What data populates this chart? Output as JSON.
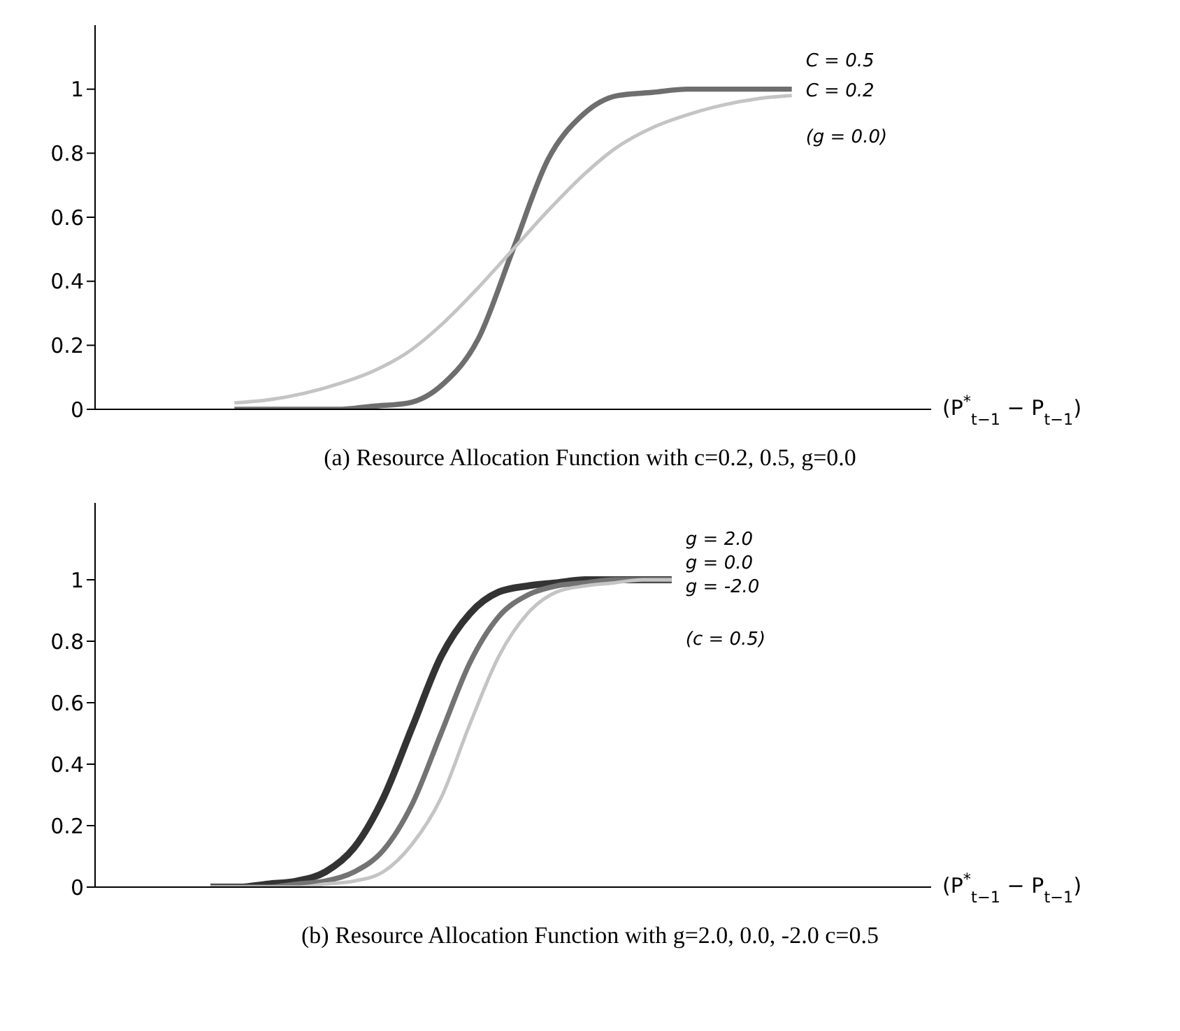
{
  "chart_data": [
    {
      "type": "line",
      "title": "(a) Resource Allocation Function with c=0.2, 0.5, g=0.0",
      "xlabel": "(P$^{*}$$_{t−1}$ − P$_{t−1}$)",
      "categories": [
        null,
        null,
        null,
        null,
        null,
        null,
        null,
        null,
        null,
        null,
        null,
        null,
        null,
        null,
        null,
        null,
        null,
        null,
        null,
        null,
        null,
        null,
        null,
        null,
        null
      ],
      "series": [
        {
          "name": "C = 0.5",
          "color": "#6e6e6e",
          "values": [
            null,
            null,
            null,
            null,
            0,
            0,
            0,
            0,
            0.01,
            0.02,
            0.08,
            0.22,
            0.5,
            0.78,
            0.92,
            0.98,
            0.99,
            1,
            1,
            1,
            1,
            null,
            null,
            null,
            null
          ]
        },
        {
          "name": "C = 0.2",
          "color": "#c4c4c4",
          "values": [
            null,
            null,
            null,
            null,
            0.02,
            0.03,
            0.05,
            0.08,
            0.12,
            0.18,
            0.27,
            0.38,
            0.5,
            0.62,
            0.73,
            0.82,
            0.88,
            0.92,
            0.95,
            0.97,
            0.98,
            null,
            null,
            null,
            null
          ]
        }
      ],
      "annotations": [
        "(g = 0.0)"
      ],
      "ylim": [
        0,
        1.2
      ],
      "yticks": [
        0,
        0.2,
        0.4,
        0.6,
        0.8,
        1
      ]
    },
    {
      "type": "line",
      "title": "(b) Resource Allocation Function with g=2.0, 0.0, -2.0 c=0.5",
      "xlabel": "(P$^{*}$$_{t−1}$ − P$_{t−1}$)",
      "categories": [
        null,
        null,
        null,
        null,
        null,
        null,
        null,
        null,
        null,
        null,
        null,
        null,
        null,
        null,
        null,
        null,
        null,
        null,
        null,
        null,
        null,
        null,
        null,
        null,
        null,
        null,
        null,
        null,
        null,
        null
      ],
      "series": [
        {
          "name": "g = 2.0",
          "color": "#333333",
          "values": [
            null,
            null,
            null,
            null,
            0,
            0,
            0.01,
            0.02,
            0.05,
            0.13,
            0.29,
            0.52,
            0.75,
            0.89,
            0.96,
            0.98,
            0.99,
            1,
            1,
            1,
            1,
            null,
            null,
            null,
            null,
            null,
            null,
            null,
            null,
            null
          ]
        },
        {
          "name": "g = 0.0",
          "color": "#737373",
          "values": [
            null,
            null,
            null,
            null,
            0,
            0,
            0,
            0.01,
            0.02,
            0.05,
            0.12,
            0.27,
            0.5,
            0.73,
            0.88,
            0.95,
            0.98,
            0.99,
            1,
            1,
            1,
            null,
            null,
            null,
            null,
            null,
            null,
            null,
            null,
            null
          ]
        },
        {
          "name": "g = -2.0",
          "color": "#c4c4c4",
          "values": [
            null,
            null,
            null,
            null,
            0,
            0,
            0,
            0,
            0.01,
            0.02,
            0.05,
            0.14,
            0.29,
            0.53,
            0.75,
            0.89,
            0.96,
            0.98,
            0.99,
            1,
            1,
            null,
            null,
            null,
            null,
            null,
            null,
            null,
            null,
            null
          ]
        }
      ],
      "annotations": [
        "(c = 0.5)"
      ],
      "ylim": [
        0,
        1.25
      ],
      "yticks": [
        0,
        0.2,
        0.4,
        0.6,
        0.8,
        1
      ]
    }
  ]
}
